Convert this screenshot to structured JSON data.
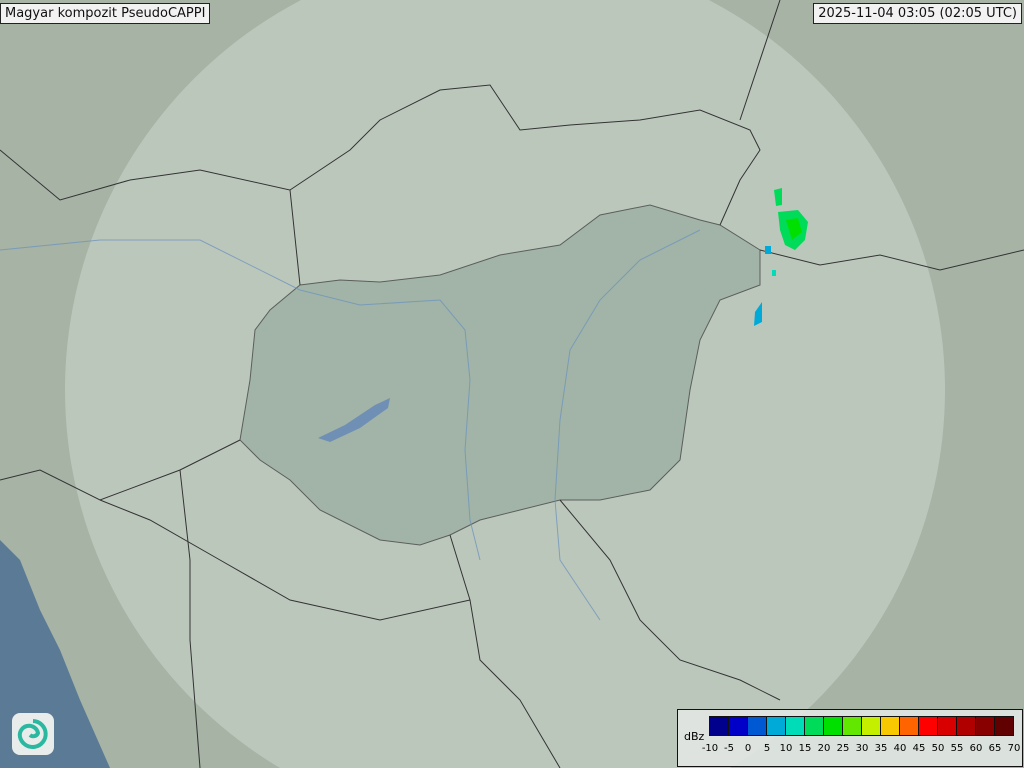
{
  "header": {
    "title": "Magyar kompozit  PseudoCAPPI",
    "timestamp": "2025-11-04 03:05 (02:05 UTC)"
  },
  "legend": {
    "unit": "dBz",
    "ticks": [
      "-10",
      "-5",
      "0",
      "5",
      "10",
      "15",
      "20",
      "25",
      "30",
      "35",
      "40",
      "45",
      "50",
      "55",
      "60",
      "65",
      "70"
    ],
    "colors": [
      "#00008c",
      "#0000c8",
      "#0058d2",
      "#00aad8",
      "#00dcb8",
      "#00dc5a",
      "#00e000",
      "#62e800",
      "#c4f000",
      "#f8c800",
      "#ff6400",
      "#ff0000",
      "#d80000",
      "#b00000",
      "#880000",
      "#600000"
    ]
  },
  "logo": {
    "icon": "swirl-logo-icon"
  },
  "colors": {
    "terrain": "#a3b1a3",
    "coverage": "#c4cfc6",
    "sea": "#5b7a95",
    "hungary": "#98ada0"
  }
}
